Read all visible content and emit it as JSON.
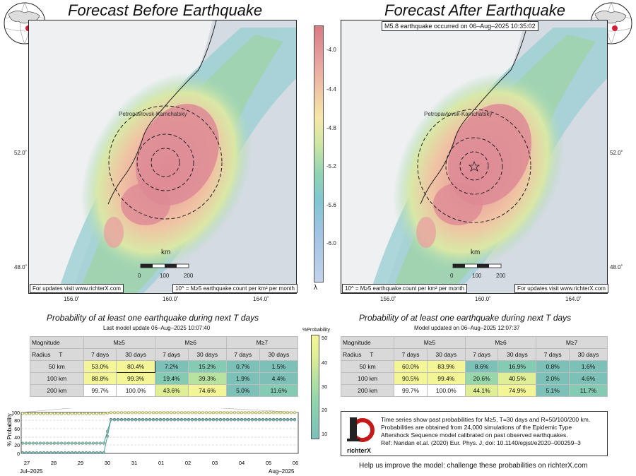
{
  "left": {
    "title": "Forecast Before Earthquake",
    "place_label": "Petropavlovsk-Kamchatsky",
    "km_label": "km",
    "scale_ticks": [
      "0",
      "100",
      "200"
    ],
    "note_updates": "For updates visit www.richterX.com",
    "note_legend": "10^ = M≥5 earthquake count per km² per month",
    "lat_ticks": [
      "52.0˚",
      "48.0˚"
    ],
    "lon_ticks": [
      "156.0˚",
      "160.0˚",
      "164.0˚"
    ],
    "table_title": "Probability of at least one earthquake during next T days",
    "table_subtitle": "Last model update 06–Aug–2025 10:07:40"
  },
  "right": {
    "title": "Forecast After Earthquake",
    "event_label": "M5.8 earthquake occurred on 06–Aug–2025 10:35:02",
    "place_label": "Petropavlovsk-Kamchatsky",
    "km_label": "km",
    "scale_ticks": [
      "0",
      "100",
      "200"
    ],
    "note_updates": "For updates visit www.richterX.com",
    "note_legend": "10^ = M≥5 earthquake count per km² per month",
    "lat_ticks": [
      "52.0˚",
      "48.0˚"
    ],
    "lon_ticks": [
      "156.0˚",
      "160.0˚",
      "164.0˚"
    ],
    "table_title": "Probability of at least one earthquake during next T days",
    "table_subtitle": "Model updated on 06–Aug–2025 12:07:37"
  },
  "colorbar": {
    "ticks": [
      "-4.0",
      "-4.4",
      "-4.8",
      "-5.2",
      "-5.6",
      "-6.0"
    ],
    "symbol": "λ"
  },
  "prob_colorbar": {
    "title": "%Probability",
    "ticks": [
      "50",
      "40",
      "30",
      "20",
      "10"
    ]
  },
  "table_headers": {
    "magnitude": "Magnitude",
    "radius": "Radius",
    "t": "T",
    "mags": [
      "M≥5",
      "M≥6",
      "M≥7"
    ],
    "periods": [
      "7 days",
      "30 days"
    ],
    "radii": [
      "50 km",
      "100 km",
      "200 km"
    ]
  },
  "table_before": [
    [
      "53.0%",
      "80.4%",
      "7.2%",
      "15.2%",
      "0.7%",
      "1.5%"
    ],
    [
      "88.8%",
      "99.3%",
      "19.4%",
      "39.3%",
      "1.9%",
      "4.4%"
    ],
    [
      "99.7%",
      "100.0%",
      "43.6%",
      "74.6%",
      "5.0%",
      "11.6%"
    ]
  ],
  "table_after": [
    [
      "60.0%",
      "83.9%",
      "8.6%",
      "16.9%",
      "0.8%",
      "1.6%"
    ],
    [
      "90.5%",
      "99.4%",
      "20.6%",
      "40.5%",
      "2.0%",
      "4.6%"
    ],
    [
      "99.7%",
      "100.0%",
      "44.1%",
      "74.9%",
      "5.1%",
      "11.7%"
    ]
  ],
  "timeseries": {
    "ylabel": "% Probability",
    "yticks": [
      "100",
      "80",
      "60",
      "40",
      "20",
      "0"
    ],
    "xticks": [
      "27",
      "28",
      "29",
      "30",
      "31",
      "01",
      "02",
      "03",
      "04",
      "05",
      "06"
    ],
    "start_label": "Jul–2025",
    "end_label": "Aug–2025"
  },
  "info": {
    "lines": [
      "Time series show past probabilities for M≥5, T=30 days and R=50/100/200 km.",
      "Probabilities are obtained from 24,000 simulations of the Epidemic Type",
      "Aftershock Sequence model calibrated on past observed earthquakes.",
      "Ref: Nandan et.al. (2020) Eur. Phys. J, doi: 10.1140/epjst/e2020–000259–3"
    ],
    "logo_text": "richterX"
  },
  "footer": "Help us improve the model: challenge these probabilities on richterX.com",
  "colors": {
    "hot": "#d97a85",
    "warm": "#f0c9a6",
    "yellow": "#f6f28f",
    "mid": "#8fd3b3",
    "cool": "#7cc0b8"
  }
}
